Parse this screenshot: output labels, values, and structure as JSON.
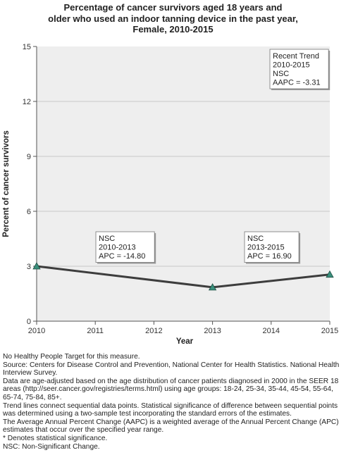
{
  "title_lines": [
    "Percentage of cancer survivors aged 18 years and",
    "older who used an indoor tanning device in the past year,",
    "Female,  2010-2015"
  ],
  "chart_data": {
    "type": "line",
    "title": "Percentage of cancer survivors aged 18 years and older who used an indoor tanning device in the past year, Female,  2010-2015",
    "xlabel": "Year",
    "ylabel": "Percent of cancer survivors",
    "xlim": [
      2010,
      2015
    ],
    "ylim": [
      0,
      15
    ],
    "x_ticks": [
      "2010",
      "2011",
      "2012",
      "2013",
      "2014",
      "2015"
    ],
    "y_ticks": [
      "0",
      "3",
      "6",
      "9",
      "12",
      "15"
    ],
    "grid": true,
    "series": [
      {
        "x": [
          2010,
          2013,
          2015
        ],
        "values": [
          3.0,
          1.85,
          2.55
        ],
        "color": "#3d3d3d",
        "marker_color": "#3a8f7c"
      }
    ],
    "annotations": [
      {
        "position": "segment-1",
        "lines": [
          "NSC",
          "2010-2013",
          "APC = -14.80"
        ]
      },
      {
        "position": "segment-2",
        "lines": [
          "NSC",
          "2013-2015",
          "APC = 16.90"
        ]
      },
      {
        "position": "top-right",
        "lines": [
          "Recent Trend",
          "2010-2015",
          "NSC",
          "AAPC = -3.31"
        ]
      }
    ],
    "colors": {
      "plot_background": "#eeeeee",
      "gridline": "#c8c8c8",
      "axis": "#555555"
    }
  },
  "footnotes": [
    "No Healthy People Target for this measure.",
    "Source: Centers for Disease Control and Prevention, National Center for Health Statistics. National Health Interview Survey.",
    "Data are age-adjusted based on the age distribution of cancer patients diagnosed in 2000 in the SEER 18 areas (http://seer.cancer.gov/registries/terms.html) using age groups: 18-24, 25-34, 35-44, 45-54, 55-64, 65-74, 75-84, 85+.",
    "Trend lines connect sequential data points. Statistical significance of difference between sequential points was determined using a two-sample test incorporating the standard errors of the estimates.",
    "The Average Annual Percent Change (AAPC) is a weighted average of the Annual Percent Change (APC) estimates that occur over the specified year range.",
    "* Denotes statistical significance.",
    "NSC: Non-Significant Change."
  ]
}
